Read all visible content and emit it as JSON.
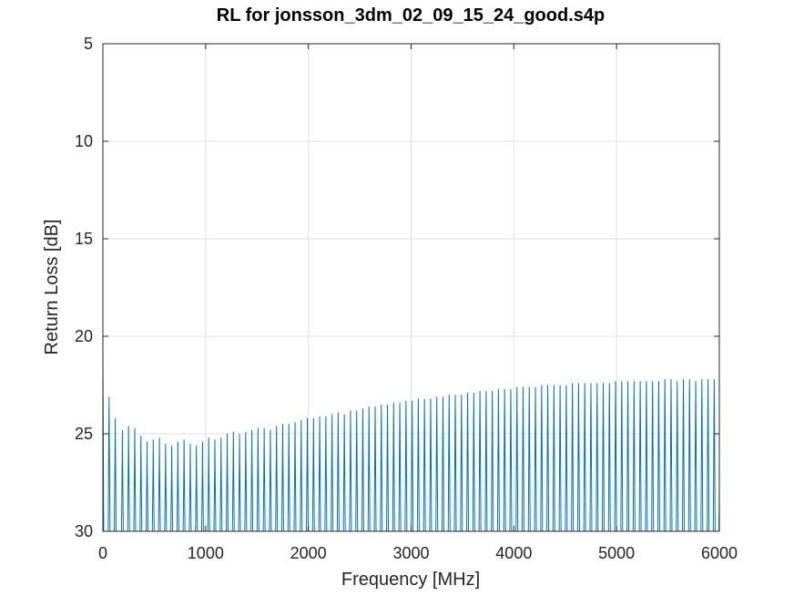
{
  "chart_data": {
    "type": "line",
    "title": "RL for jonsson_3dm_02_09_15_24_good.s4p",
    "xlabel": "Frequency [MHz]",
    "ylabel": "Return Loss [dB]",
    "xlim": [
      0,
      6000
    ],
    "ylim": [
      5,
      30
    ],
    "y_reversed": true,
    "grid": true,
    "x_ticks": [
      0,
      1000,
      2000,
      3000,
      4000,
      5000,
      6000
    ],
    "y_ticks": [
      5,
      10,
      15,
      20,
      25,
      30
    ],
    "series_color": "#0072BD",
    "series": [
      {
        "description": "periodic return-loss peaks (peak frequency MHz, peak RL dB); trace drops below 30 dB between peaks",
        "start": [
          0,
          21.0
        ],
        "end": [
          6000,
          27.9
        ],
        "peaks": [
          [
            60,
            23.1
          ],
          [
            120,
            24.2
          ],
          [
            190,
            24.8
          ],
          [
            250,
            24.6
          ],
          [
            310,
            24.7
          ],
          [
            370,
            25.1
          ],
          [
            430,
            25.4
          ],
          [
            490,
            25.3
          ],
          [
            550,
            25.2
          ],
          [
            610,
            25.5
          ],
          [
            670,
            25.6
          ],
          [
            730,
            25.4
          ],
          [
            790,
            25.3
          ],
          [
            850,
            25.5
          ],
          [
            910,
            25.6
          ],
          [
            970,
            25.4
          ],
          [
            1030,
            25.2
          ],
          [
            1090,
            25.3
          ],
          [
            1150,
            25.2
          ],
          [
            1210,
            25.0
          ],
          [
            1270,
            24.9
          ],
          [
            1330,
            25.0
          ],
          [
            1390,
            24.9
          ],
          [
            1450,
            24.8
          ],
          [
            1510,
            24.7
          ],
          [
            1570,
            24.7
          ],
          [
            1630,
            24.8
          ],
          [
            1690,
            24.6
          ],
          [
            1750,
            24.5
          ],
          [
            1810,
            24.5
          ],
          [
            1870,
            24.4
          ],
          [
            1930,
            24.3
          ],
          [
            1990,
            24.2
          ],
          [
            2050,
            24.2
          ],
          [
            2110,
            24.1
          ],
          [
            2170,
            24.1
          ],
          [
            2230,
            24.0
          ],
          [
            2290,
            23.9
          ],
          [
            2350,
            24.0
          ],
          [
            2410,
            23.8
          ],
          [
            2470,
            23.8
          ],
          [
            2530,
            23.7
          ],
          [
            2590,
            23.6
          ],
          [
            2650,
            23.6
          ],
          [
            2710,
            23.5
          ],
          [
            2770,
            23.5
          ],
          [
            2830,
            23.4
          ],
          [
            2890,
            23.4
          ],
          [
            2950,
            23.3
          ],
          [
            3010,
            23.3
          ],
          [
            3070,
            23.2
          ],
          [
            3130,
            23.2
          ],
          [
            3190,
            23.2
          ],
          [
            3250,
            23.1
          ],
          [
            3310,
            23.1
          ],
          [
            3370,
            23.0
          ],
          [
            3430,
            23.0
          ],
          [
            3490,
            23.0
          ],
          [
            3550,
            22.9
          ],
          [
            3610,
            22.9
          ],
          [
            3670,
            22.8
          ],
          [
            3730,
            22.8
          ],
          [
            3790,
            22.8
          ],
          [
            3850,
            22.7
          ],
          [
            3910,
            22.7
          ],
          [
            3970,
            22.7
          ],
          [
            4030,
            22.6
          ],
          [
            4090,
            22.6
          ],
          [
            4150,
            22.6
          ],
          [
            4210,
            22.6
          ],
          [
            4270,
            22.5
          ],
          [
            4330,
            22.5
          ],
          [
            4390,
            22.5
          ],
          [
            4450,
            22.5
          ],
          [
            4510,
            22.5
          ],
          [
            4570,
            22.4
          ],
          [
            4630,
            22.4
          ],
          [
            4690,
            22.4
          ],
          [
            4750,
            22.4
          ],
          [
            4810,
            22.4
          ],
          [
            4870,
            22.4
          ],
          [
            4930,
            22.4
          ],
          [
            4990,
            22.3
          ],
          [
            5050,
            22.3
          ],
          [
            5110,
            22.3
          ],
          [
            5170,
            22.3
          ],
          [
            5230,
            22.3
          ],
          [
            5290,
            22.3
          ],
          [
            5350,
            22.3
          ],
          [
            5410,
            22.3
          ],
          [
            5470,
            22.2
          ],
          [
            5530,
            22.2
          ],
          [
            5590,
            22.3
          ],
          [
            5650,
            22.2
          ],
          [
            5710,
            22.2
          ],
          [
            5770,
            22.3
          ],
          [
            5830,
            22.2
          ],
          [
            5890,
            22.2
          ],
          [
            5950,
            22.2
          ]
        ]
      }
    ]
  }
}
